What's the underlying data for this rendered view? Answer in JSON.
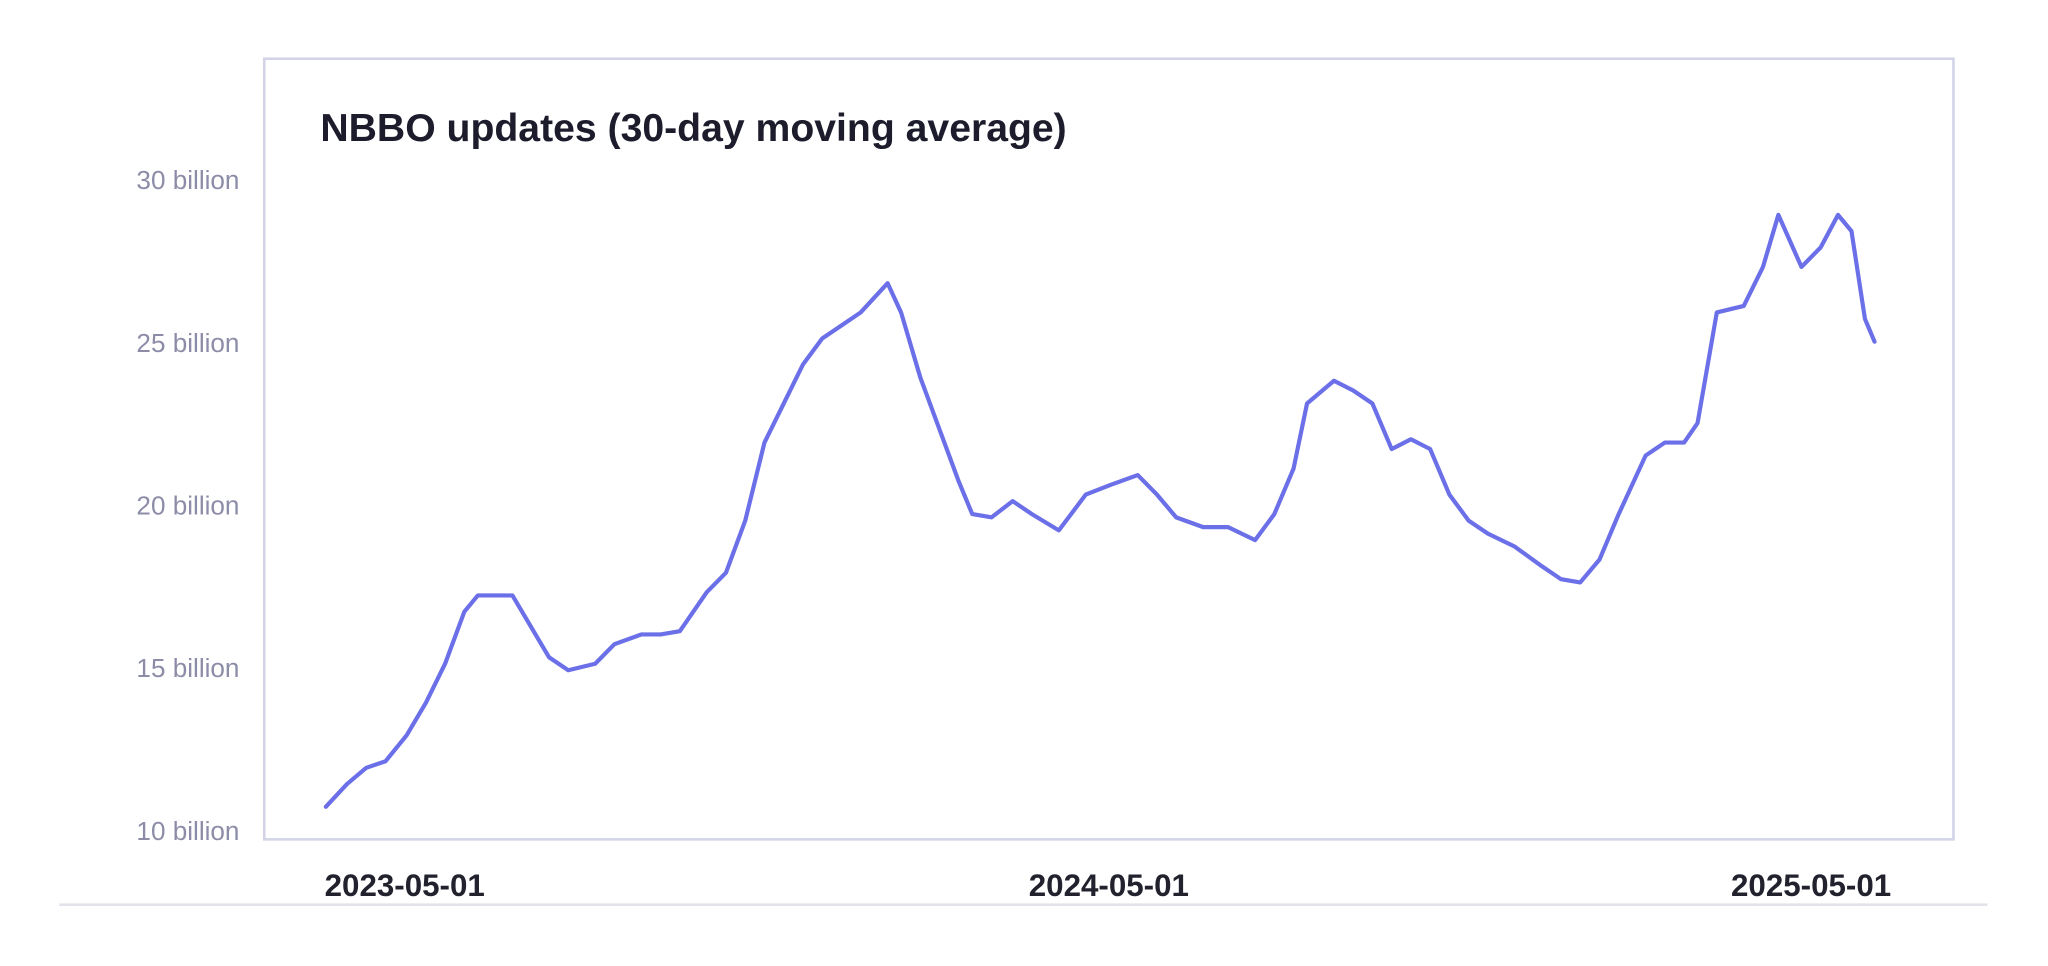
{
  "chart_data": {
    "type": "line",
    "title": "NBBO updates (30-day moving average)",
    "x": [
      "2023-03-21",
      "2023-04-01",
      "2023-04-11",
      "2023-04-21",
      "2023-05-02",
      "2023-05-12",
      "2023-05-22",
      "2023-06-01",
      "2023-06-08",
      "2023-06-18",
      "2023-06-26",
      "2023-07-05",
      "2023-07-15",
      "2023-07-25",
      "2023-08-08",
      "2023-08-18",
      "2023-09-01",
      "2023-09-11",
      "2023-09-21",
      "2023-10-05",
      "2023-10-15",
      "2023-10-25",
      "2023-11-04",
      "2023-11-14",
      "2023-11-24",
      "2023-12-04",
      "2023-12-14",
      "2023-12-24",
      "2024-01-07",
      "2024-01-14",
      "2024-01-24",
      "2024-02-03",
      "2024-02-13",
      "2024-02-20",
      "2024-03-01",
      "2024-03-12",
      "2024-03-22",
      "2024-04-05",
      "2024-04-19",
      "2024-05-02",
      "2024-05-16",
      "2024-05-26",
      "2024-06-05",
      "2024-06-19",
      "2024-07-02",
      "2024-07-16",
      "2024-07-26",
      "2024-08-05",
      "2024-08-12",
      "2024-08-26",
      "2024-09-05",
      "2024-09-15",
      "2024-09-25",
      "2024-10-05",
      "2024-10-15",
      "2024-10-25",
      "2024-11-04",
      "2024-11-14",
      "2024-11-28",
      "2024-12-12",
      "2024-12-22",
      "2025-01-01",
      "2025-01-11",
      "2025-01-21",
      "2025-02-04",
      "2025-02-14",
      "2025-02-24",
      "2025-03-03",
      "2025-03-13",
      "2025-03-27",
      "2025-04-06",
      "2025-04-14",
      "2025-04-26",
      "2025-05-06",
      "2025-05-15",
      "2025-05-22",
      "2025-05-29",
      "2025-06-03"
    ],
    "series": [
      {
        "color": "#6b6fe8",
        "values": [
          10.8,
          11.5,
          12.0,
          12.2,
          13.0,
          14.0,
          15.2,
          16.8,
          17.3,
          17.3,
          17.3,
          16.4,
          15.4,
          15.0,
          15.2,
          15.8,
          16.1,
          16.1,
          16.2,
          17.4,
          18.0,
          19.6,
          22.0,
          23.2,
          24.4,
          25.2,
          25.6,
          26.0,
          26.9,
          26.0,
          24.0,
          22.4,
          20.8,
          19.8,
          19.7,
          20.2,
          19.8,
          19.3,
          20.4,
          20.7,
          21.0,
          20.4,
          19.7,
          19.4,
          19.4,
          19.0,
          19.8,
          21.2,
          23.2,
          23.9,
          23.6,
          23.2,
          21.8,
          22.1,
          21.8,
          20.4,
          19.6,
          19.2,
          18.8,
          18.2,
          17.8,
          17.7,
          18.4,
          19.8,
          21.6,
          22.0,
          22.0,
          22.6,
          26.0,
          26.2,
          27.4,
          29.0,
          27.4,
          28.0,
          29.0,
          28.5,
          25.8,
          25.1
        ]
      }
    ],
    "xlim": [
      "2023-02-17",
      "2025-07-14"
    ],
    "xticks": [
      "2023-05-01",
      "2024-05-01",
      "2025-05-01"
    ],
    "ylim": [
      9.8,
      33.8
    ],
    "yticks": [
      {
        "value": 10,
        "label": "10 billion"
      },
      {
        "value": 15,
        "label": "15 billion"
      },
      {
        "value": 20,
        "label": "20 billion"
      },
      {
        "value": 25,
        "label": "25 billion"
      },
      {
        "value": 30,
        "label": "30 billion"
      }
    ],
    "grid": false
  }
}
